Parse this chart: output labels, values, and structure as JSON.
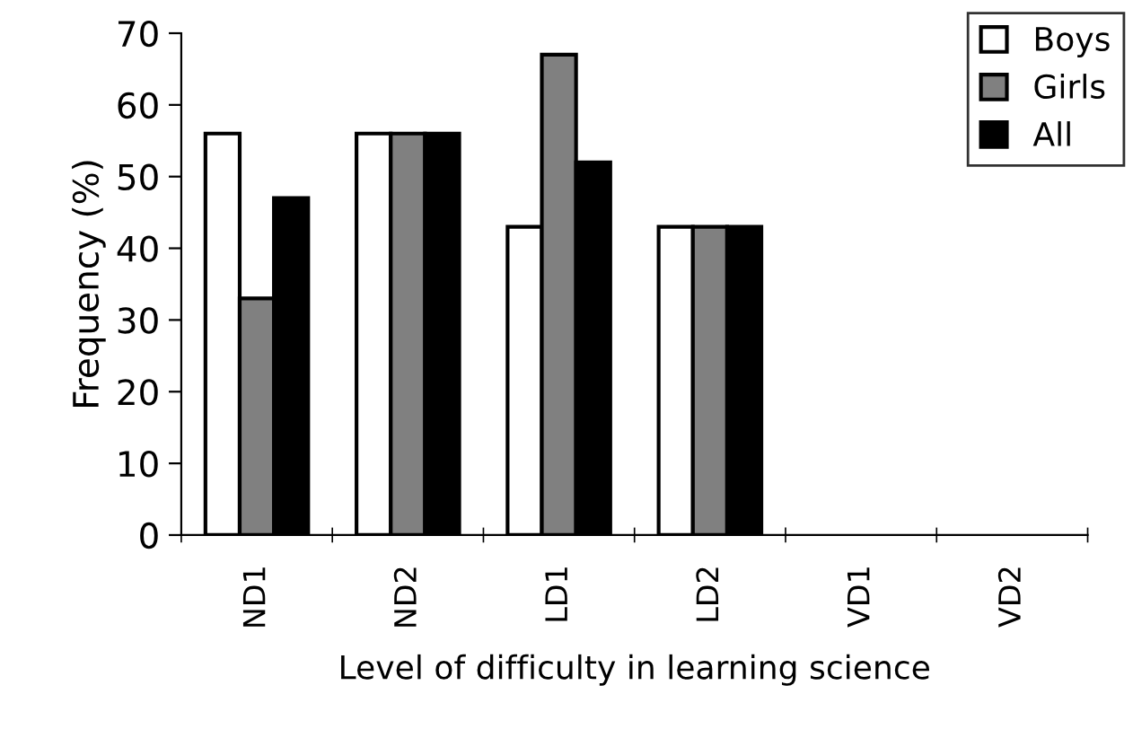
{
  "chart_data": {
    "type": "bar",
    "xlabel": "Level of difficulty in learning science",
    "ylabel": "Frequency (%)",
    "categories": [
      "ND1",
      "ND2",
      "LD1",
      "LD2",
      "VD1",
      "VD2"
    ],
    "series": [
      {
        "name": "Boys",
        "color": "#ffffff",
        "values": [
          56,
          56,
          43,
          43,
          0,
          0
        ]
      },
      {
        "name": "Girls",
        "color": "#808080",
        "values": [
          33,
          56,
          67,
          43,
          0,
          0
        ]
      },
      {
        "name": "All",
        "color": "#000000",
        "values": [
          47,
          56,
          52,
          43,
          0,
          0
        ]
      }
    ],
    "ylim": [
      0,
      70
    ],
    "yticks": [
      0,
      10,
      20,
      30,
      40,
      50,
      60,
      70
    ],
    "grid": false,
    "legend": "top right"
  }
}
